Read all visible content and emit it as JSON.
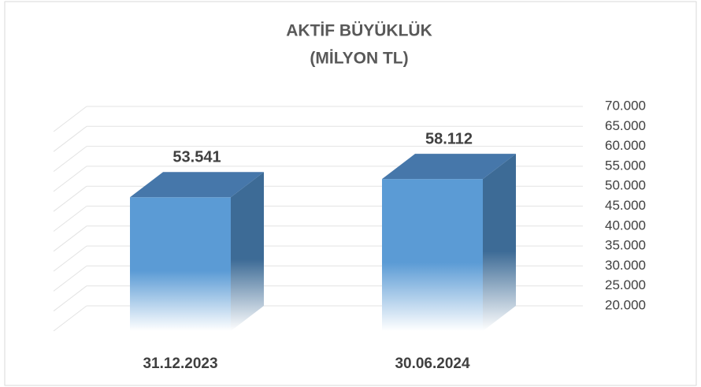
{
  "chart_data": {
    "type": "bar3d",
    "title": "AKTİF BÜYÜKLÜK",
    "subtitle": "(MİLYON TL)",
    "categories": [
      "31.12.2023",
      "30.06.2024"
    ],
    "values": [
      53541,
      58112
    ],
    "value_labels": [
      "53.541",
      "58.112"
    ],
    "color": "#5b9bd5",
    "ylim": [
      20000,
      70000
    ],
    "yticks": [
      {
        "value": 20000,
        "label": "20.000"
      },
      {
        "value": 25000,
        "label": "25.000"
      },
      {
        "value": 30000,
        "label": "30.000"
      },
      {
        "value": 35000,
        "label": "35.000"
      },
      {
        "value": 40000,
        "label": "40.000"
      },
      {
        "value": 45000,
        "label": "45.000"
      },
      {
        "value": 50000,
        "label": "50.000"
      },
      {
        "value": 55000,
        "label": "55.000"
      },
      {
        "value": 60000,
        "label": "60.000"
      },
      {
        "value": 65000,
        "label": "65.000"
      },
      {
        "value": 70000,
        "label": "70.000"
      }
    ],
    "grid": true
  }
}
